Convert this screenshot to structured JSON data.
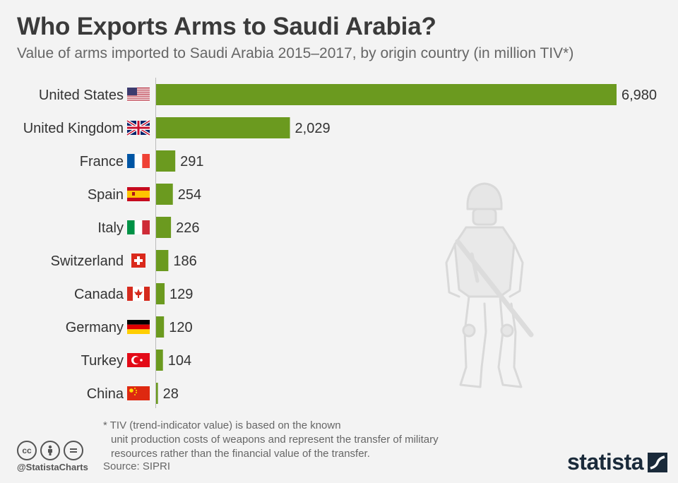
{
  "header": {
    "title": "Who Exports Arms to Saudi Arabia?",
    "subtitle": "Value of arms imported to Saudi Arabia 2015–2017, by origin country (in million TIV*)"
  },
  "chart_data": {
    "type": "bar",
    "orientation": "horizontal",
    "categories": [
      "United States",
      "United Kingdom",
      "France",
      "Spain",
      "Italy",
      "Switzerland",
      "Canada",
      "Germany",
      "Turkey",
      "China"
    ],
    "values": [
      6980,
      2029,
      291,
      254,
      226,
      186,
      129,
      120,
      104,
      28
    ],
    "value_labels": [
      "6,980",
      "2,029",
      "291",
      "254",
      "226",
      "186",
      "129",
      "120",
      "104",
      "28"
    ],
    "flags": [
      "us-flag-icon",
      "uk-flag-icon",
      "france-flag-icon",
      "spain-flag-icon",
      "italy-flag-icon",
      "switzerland-flag-icon",
      "canada-flag-icon",
      "germany-flag-icon",
      "turkey-flag-icon",
      "china-flag-icon"
    ],
    "title": "Who Exports Arms to Saudi Arabia?",
    "xlabel": "",
    "ylabel": "",
    "xlim": [
      0,
      6980
    ],
    "grid": false,
    "bar_color": "#6b9a1f"
  },
  "footnote": {
    "line1": "* TIV (trend-indicator value) is based on the known",
    "line2": "unit production costs of weapons and represent the transfer of military",
    "line3": "resources rather than the financial value of the transfer."
  },
  "footer": {
    "handle": "@StatistaCharts",
    "source": "Source: SIPRI",
    "brand": "statista",
    "license_icons": [
      "cc-icon",
      "by-icon",
      "nd-icon"
    ]
  },
  "decoration": {
    "watermark": "soldier-silhouette-icon"
  }
}
